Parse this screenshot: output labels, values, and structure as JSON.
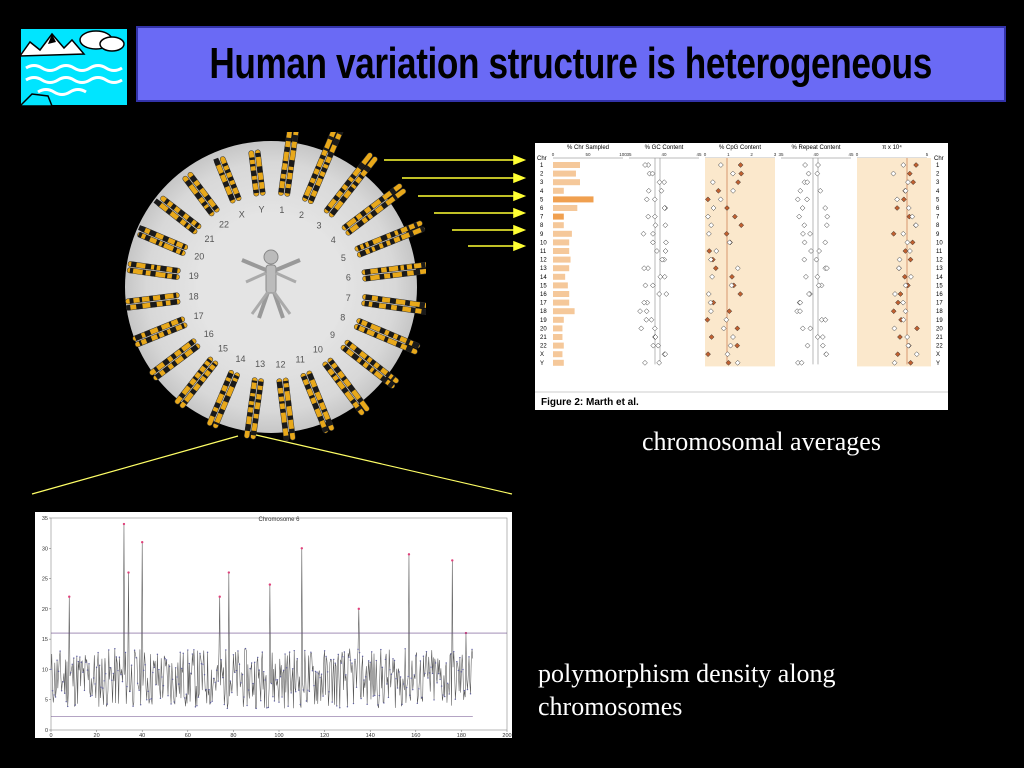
{
  "slide": {
    "title": "Human variation structure is heterogeneous",
    "caption_averages": "chromosomal averages",
    "caption_density": "polymorphism density along chromosomes"
  },
  "karyogram": {
    "chromosome_labels": [
      "1",
      "2",
      "3",
      "4",
      "5",
      "6",
      "7",
      "8",
      "9",
      "10",
      "11",
      "12",
      "13",
      "14",
      "15",
      "16",
      "17",
      "18",
      "19",
      "20",
      "21",
      "22",
      "X",
      "Y"
    ],
    "colors": {
      "band_dark": "#1a1a1a",
      "band_light": "#e8a81a",
      "disk": "#d8d8d8"
    }
  },
  "figure2": {
    "caption": "Figure 2: Marth et al.",
    "row_header": "Chr",
    "rows": [
      "1",
      "2",
      "3",
      "4",
      "5",
      "6",
      "7",
      "8",
      "9",
      "10",
      "11",
      "12",
      "13",
      "14",
      "15",
      "16",
      "17",
      "18",
      "19",
      "20",
      "21",
      "22",
      "X",
      "Y"
    ],
    "panels": [
      "% Chr Sampled",
      "% GC Content",
      "% CpG Content",
      "% Repeat Content",
      "π x 10⁴"
    ],
    "panel_ticks": [
      [
        "0",
        "50",
        "100"
      ],
      [
        "35",
        "40",
        "45"
      ],
      [
        "0",
        "1",
        "2",
        "3"
      ],
      [
        "35",
        "40",
        "45"
      ],
      [
        "0",
        "5"
      ]
    ],
    "colors": {
      "bar": "#f5c89a",
      "bar_highlight": "#f0a050",
      "shade": "#fbe8cc",
      "marker": "#c06030"
    }
  },
  "chart_data": {
    "type": "line",
    "title": "Chromosome 6",
    "x_ticks": [
      "0",
      "20",
      "40",
      "60",
      "80",
      "100",
      "120",
      "140",
      "160",
      "180",
      "200"
    ],
    "y_ticks": [
      "0",
      "5",
      "10",
      "15",
      "20",
      "25",
      "30",
      "35"
    ],
    "xlim": [
      0,
      200
    ],
    "ylim": [
      0,
      35
    ],
    "threshold": 16,
    "peaks": [
      {
        "x": 8,
        "y": 22
      },
      {
        "x": 32,
        "y": 34
      },
      {
        "x": 34,
        "y": 26
      },
      {
        "x": 40,
        "y": 31
      },
      {
        "x": 74,
        "y": 22
      },
      {
        "x": 78,
        "y": 26
      },
      {
        "x": 96,
        "y": 24
      },
      {
        "x": 110,
        "y": 30
      },
      {
        "x": 135,
        "y": 20
      },
      {
        "x": 157,
        "y": 29
      },
      {
        "x": 176,
        "y": 28
      },
      {
        "x": 182,
        "y": 16
      }
    ],
    "baseline_mean": 8.5,
    "x_end": 185
  }
}
